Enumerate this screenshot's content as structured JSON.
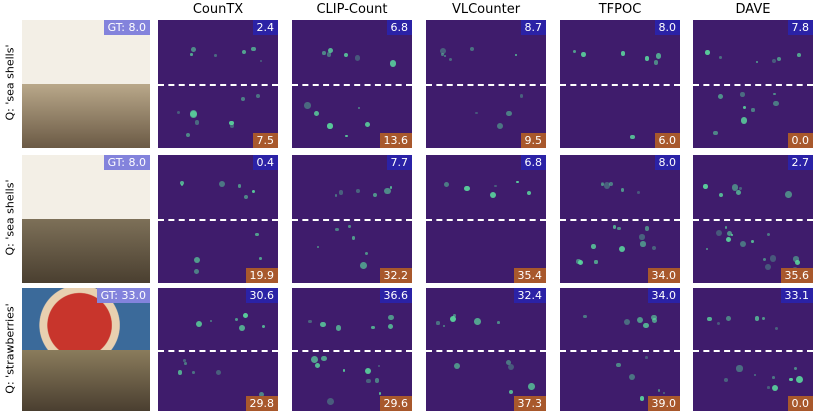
{
  "columns": [
    "CounTX",
    "CLIP-Count",
    "VLCounter",
    "TFPOC",
    "DAVE"
  ],
  "rows": [
    {
      "query": "Q: 'sea shells'",
      "gt": "GT: 8.0",
      "cells": [
        {
          "top": "2.4",
          "bottom": "7.5"
        },
        {
          "top": "6.8",
          "bottom": "13.6"
        },
        {
          "top": "8.7",
          "bottom": "9.5"
        },
        {
          "top": "8.0",
          "bottom": "6.0"
        },
        {
          "top": "7.8",
          "bottom": "0.0"
        }
      ]
    },
    {
      "query": "Q: 'sea shells'",
      "gt": "GT: 8.0",
      "cells": [
        {
          "top": "0.4",
          "bottom": "19.9"
        },
        {
          "top": "7.7",
          "bottom": "32.2"
        },
        {
          "top": "6.8",
          "bottom": "35.4"
        },
        {
          "top": "8.0",
          "bottom": "34.0"
        },
        {
          "top": "2.7",
          "bottom": "35.6"
        }
      ]
    },
    {
      "query": "Q: 'strawberries'",
      "gt": "GT: 33.0",
      "cells": [
        {
          "top": "30.6",
          "bottom": "29.8"
        },
        {
          "top": "36.6",
          "bottom": "29.6"
        },
        {
          "top": "32.4",
          "bottom": "37.3"
        },
        {
          "top": "34.0",
          "bottom": "39.0"
        },
        {
          "top": "33.1",
          "bottom": "0.0"
        }
      ]
    }
  ]
}
